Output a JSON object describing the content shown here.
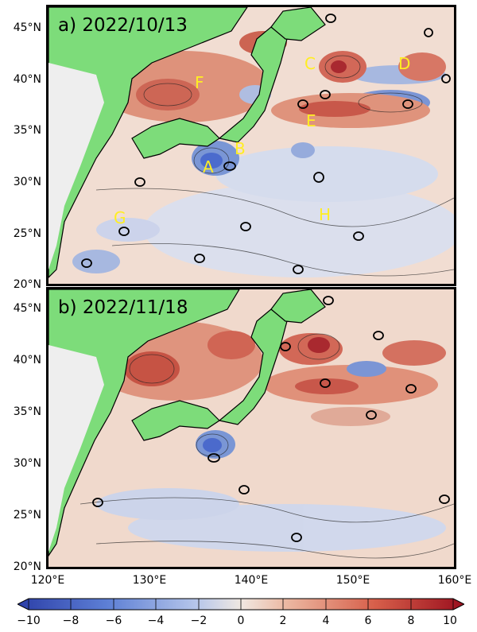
{
  "panels": [
    {
      "id": "a",
      "title": "a) 2022/10/13",
      "labels": [
        "A",
        "B",
        "C",
        "D",
        "E",
        "F",
        "G",
        "H"
      ]
    },
    {
      "id": "b",
      "title": "b) 2022/11/18",
      "labels": []
    }
  ],
  "map": {
    "lon_range": [
      120,
      160
    ],
    "lat_range": [
      20,
      47
    ],
    "lon_ticks": [
      "120°E",
      "130°E",
      "140°E",
      "150°E",
      "160°E"
    ],
    "lat_ticks": [
      "45°N",
      "40°N",
      "35°N",
      "30°N",
      "25°N",
      "20°N"
    ]
  },
  "colorbar": {
    "ticks": [
      "−10",
      "−8",
      "−6",
      "−4",
      "−2",
      "0",
      "2",
      "4",
      "6",
      "8",
      "10"
    ],
    "range": [
      -10,
      10
    ],
    "colors": {
      "neg": "#3a5fcd",
      "mid": "#f0e8e2",
      "pos": "#b2182b"
    }
  },
  "colors": {
    "land": "#7ddc7a",
    "continent_land": "#eeeeee",
    "label": "#ffee22"
  }
}
